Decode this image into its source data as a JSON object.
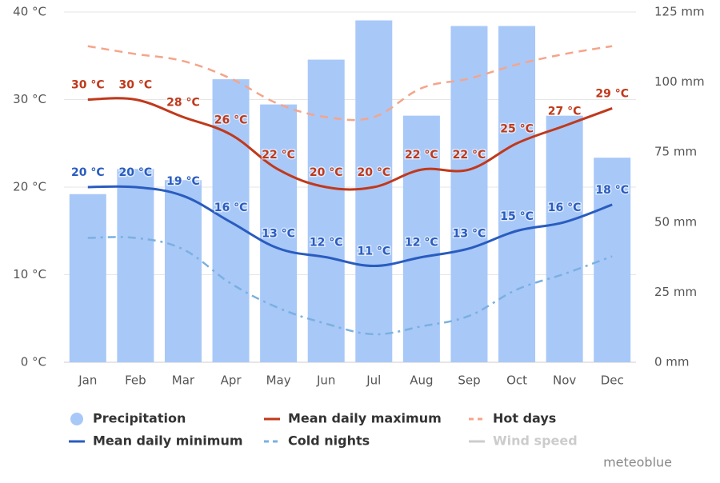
{
  "chart_data": {
    "type": "combo",
    "categories": [
      "Jan",
      "Feb",
      "Mar",
      "Apr",
      "May",
      "Jun",
      "Jul",
      "Aug",
      "Sep",
      "Oct",
      "Nov",
      "Dec"
    ],
    "ylim": [
      0,
      40
    ],
    "yticks": [
      {
        "value": 0,
        "label": "0 °C"
      },
      {
        "value": 10,
        "label": "10 °C"
      },
      {
        "value": 20,
        "label": "20 °C"
      },
      {
        "value": 30,
        "label": "30 °C"
      },
      {
        "value": 40,
        "label": "40 °C"
      }
    ],
    "y2lim": [
      0,
      125
    ],
    "y2ticks": [
      {
        "value": 0,
        "label": "0 mm"
      },
      {
        "value": 25,
        "label": "25 mm"
      },
      {
        "value": 50,
        "label": "50 mm"
      },
      {
        "value": 75,
        "label": "75 mm"
      },
      {
        "value": 100,
        "label": "100 mm"
      },
      {
        "value": 125,
        "label": "125 mm"
      }
    ],
    "grid": true,
    "series": [
      {
        "name": "Precipitation",
        "type": "bar",
        "axis": "y2",
        "color": "#a8c8f8",
        "values": [
          60,
          69,
          65,
          101,
          92,
          108,
          122,
          88,
          120,
          120,
          88,
          73
        ]
      },
      {
        "name": "Mean daily maximum",
        "type": "line",
        "color": "#c0391b",
        "values": [
          30,
          30,
          28,
          26,
          22,
          20,
          20,
          22,
          22,
          25,
          27,
          29
        ],
        "value_labels": [
          "30 °C",
          "30 °C",
          "28 °C",
          "26 °C",
          "22 °C",
          "20 °C",
          "20 °C",
          "22 °C",
          "22 °C",
          "25 °C",
          "27 °C",
          "29 °C"
        ]
      },
      {
        "name": "Hot days",
        "type": "line",
        "dash": "dashed",
        "color": "#f4a58a",
        "values": [
          36.1,
          35.2,
          34.4,
          32.4,
          29.5,
          28,
          28,
          31.3,
          32.4,
          34,
          35.2,
          36.1
        ]
      },
      {
        "name": "Mean daily minimum",
        "type": "line",
        "color": "#2a5cbf",
        "values": [
          20,
          20,
          19,
          16,
          13,
          12,
          11,
          12,
          13,
          15,
          16,
          18
        ],
        "value_labels": [
          "20 °C",
          "20 °C",
          "19 °C",
          "16 °C",
          "13 °C",
          "12 °C",
          "11 °C",
          "12 °C",
          "13 °C",
          "15 °C",
          "16 °C",
          "18 °C"
        ]
      },
      {
        "name": "Cold nights",
        "type": "line",
        "dash": "dashdot",
        "color": "#7ab0e0",
        "values": [
          14.2,
          14.2,
          12.9,
          9,
          6.2,
          4.4,
          3.2,
          4.1,
          5.3,
          8.3,
          10.1,
          12.1
        ]
      },
      {
        "name": "Wind speed",
        "type": "line",
        "color": "#cccccc",
        "visible": false
      }
    ],
    "credit": "meteoblue"
  }
}
